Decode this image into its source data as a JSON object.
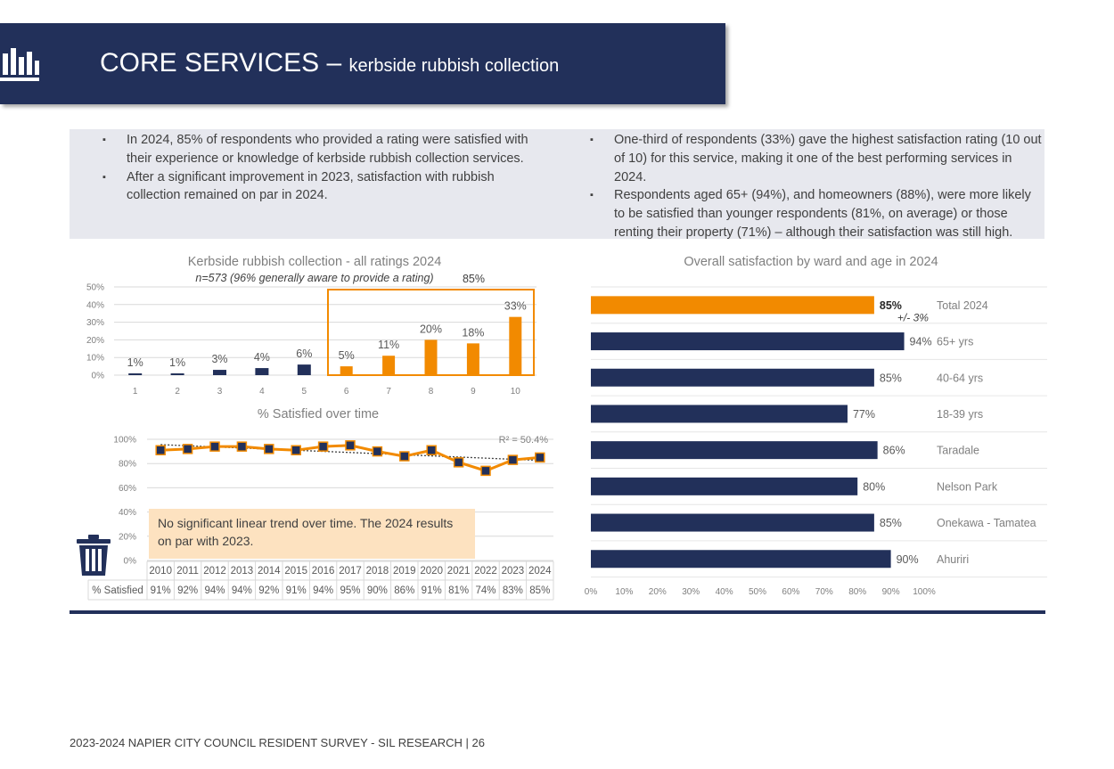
{
  "header": {
    "title_main": "CORE SERVICES – ",
    "title_sub": "kerbside rubbish collection"
  },
  "bullets_left": [
    "In 2024, 85% of respondents who provided a rating were satisfied with their experience or knowledge of kerbside rubbish collection services.",
    "After a significant improvement in 2023, satisfaction with rubbish collection remained on par in 2024."
  ],
  "bullets_right": [
    "One-third of respondents (33%) gave the highest satisfaction rating (10 out of 10) for this service, making it one of the best performing services in 2024.",
    "Respondents aged 65+ (94%), and homeowners (88%), were more likely to be satisfied than younger respondents (81%, on average) or those renting their property (71%) – although their satisfaction was still high."
  ],
  "note": "No significant linear trend over time. The 2024 results on par with 2023.",
  "footer": "2023-2024 NAPIER CITY COUNCIL RESIDENT SURVEY - SIL RESEARCH | 26",
  "colors": {
    "navy": "#22305a",
    "orange": "#f28a00",
    "note_bg": "#fde2c0",
    "panel_bg": "#e7e8ee"
  },
  "icons": {
    "banner": "bar-chart-icon",
    "bin": "rubbish-bin-icon"
  },
  "chart_data": [
    {
      "type": "bar",
      "title": "Kerbside rubbish collection - all ratings 2024",
      "subtitle": "n=573 (96% generally aware to provide a rating)",
      "categories": [
        "1",
        "2",
        "3",
        "4",
        "5",
        "6",
        "7",
        "8",
        "9",
        "10"
      ],
      "values": [
        1,
        1,
        3,
        4,
        6,
        5,
        11,
        20,
        18,
        33
      ],
      "data_labels": [
        "1%",
        "1%",
        "3%",
        "4%",
        "6%",
        "5%",
        "11%",
        "20%",
        "18%",
        "33%"
      ],
      "highlight": {
        "categories": [
          "6",
          "7",
          "8",
          "9",
          "10"
        ],
        "label": "85%"
      },
      "yticks": [
        "0%",
        "10%",
        "20%",
        "30%",
        "40%",
        "50%"
      ],
      "ylim": [
        0,
        50
      ],
      "grid": true
    },
    {
      "type": "line",
      "title": "% Satisfied over time",
      "x": [
        "2010",
        "2011",
        "2012",
        "2013",
        "2014",
        "2015",
        "2016",
        "2017",
        "2018",
        "2019",
        "2020",
        "2021",
        "2022",
        "2023",
        "2024"
      ],
      "series": [
        {
          "values": [
            91,
            92,
            94,
            94,
            92,
            91,
            94,
            95,
            90,
            86,
            91,
            81,
            74,
            83,
            85
          ]
        }
      ],
      "trendline": {
        "label": "R² = 50.4%",
        "start": 95.6,
        "end": 82.6
      },
      "yticks": [
        "0%",
        "20%",
        "40%",
        "60%",
        "80%",
        "100%"
      ],
      "ylim": [
        0,
        100
      ],
      "table": {
        "row_label": "% Satisfied",
        "values": [
          "91%",
          "92%",
          "94%",
          "94%",
          "92%",
          "91%",
          "94%",
          "95%",
          "90%",
          "86%",
          "91%",
          "81%",
          "74%",
          "83%",
          "85%"
        ]
      },
      "grid": true
    },
    {
      "type": "bar",
      "orientation": "horizontal",
      "title": "Overall satisfaction by ward and age in 2024",
      "categories": [
        "Total 2024",
        "65+ yrs",
        "40-64 yrs",
        "18-39 yrs",
        "Taradale",
        "Nelson Park",
        "Onekawa - Tamatea",
        "Ahuriri"
      ],
      "values": [
        85,
        94,
        85,
        77,
        86,
        80,
        85,
        90
      ],
      "data_labels": [
        "85%",
        "94%",
        "85%",
        "77%",
        "86%",
        "80%",
        "85%",
        "90%"
      ],
      "margin_of_error": "+/- 3%",
      "xticks": [
        "0%",
        "10%",
        "20%",
        "30%",
        "40%",
        "50%",
        "60%",
        "70%",
        "80%",
        "90%",
        "100%"
      ],
      "xlim": [
        0,
        100
      ],
      "grid": true
    }
  ]
}
